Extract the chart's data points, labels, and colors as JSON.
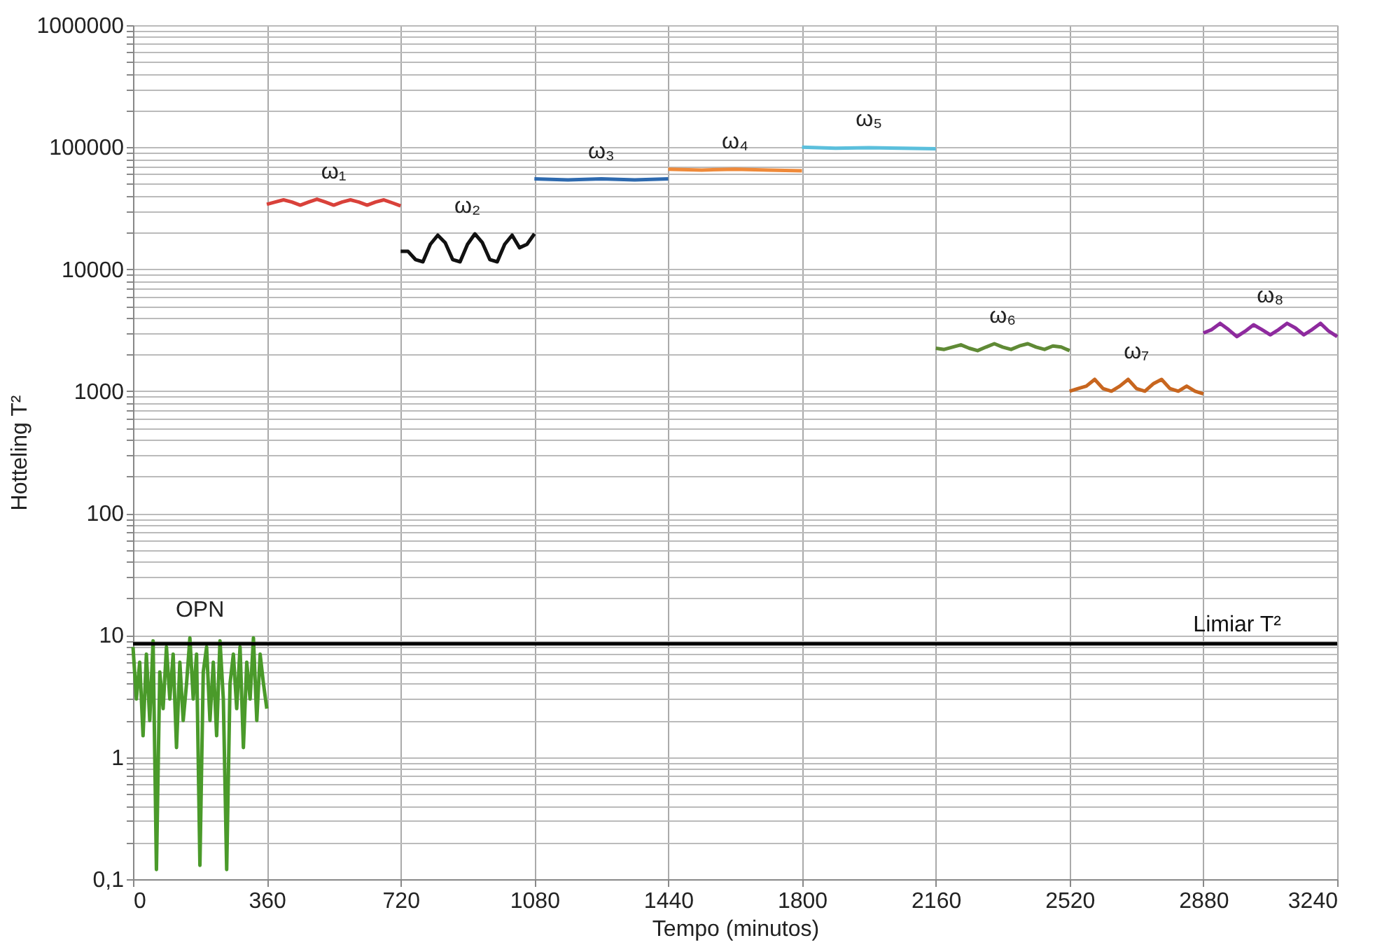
{
  "chart_data": {
    "type": "line",
    "xlabel": "Tempo (minutos)",
    "ylabel": "Hotteling T²",
    "log": "y",
    "grid": true,
    "marker": "none",
    "line_style": "solid",
    "xlim": [
      0,
      3240
    ],
    "xticks": [
      0,
      360,
      720,
      1080,
      1440,
      1800,
      2160,
      2520,
      2880,
      3240
    ],
    "ylim": [
      0.1,
      1000000
    ],
    "yticks": [
      {
        "value": 0.1,
        "label": "0,1"
      },
      {
        "value": 0.2,
        "label": null
      },
      {
        "value": 0.3,
        "label": null
      },
      {
        "value": 0.4,
        "label": null
      },
      {
        "value": 0.5,
        "label": null
      },
      {
        "value": 0.6,
        "label": null
      },
      {
        "value": 0.7,
        "label": null
      },
      {
        "value": 0.8,
        "label": null
      },
      {
        "value": 0.9,
        "label": null
      },
      1,
      {
        "value": 2,
        "label": null
      },
      {
        "value": 3,
        "label": null
      },
      {
        "value": 4,
        "label": null
      },
      {
        "value": 5,
        "label": null
      },
      {
        "value": 6,
        "label": null
      },
      {
        "value": 7,
        "label": null
      },
      {
        "value": 8,
        "label": null
      },
      {
        "value": 9,
        "label": null
      },
      10,
      {
        "value": 20,
        "label": null
      },
      {
        "value": 30,
        "label": null
      },
      {
        "value": 40,
        "label": null
      },
      {
        "value": 50,
        "label": null
      },
      {
        "value": 60,
        "label": null
      },
      {
        "value": 70,
        "label": null
      },
      {
        "value": 80,
        "label": null
      },
      {
        "value": 90,
        "label": null
      },
      100,
      {
        "value": 200,
        "label": null
      },
      {
        "value": 300,
        "label": null
      },
      {
        "value": 400,
        "label": null
      },
      {
        "value": 500,
        "label": null
      },
      {
        "value": 600,
        "label": null
      },
      {
        "value": 700,
        "label": null
      },
      {
        "value": 800,
        "label": null
      },
      {
        "value": 900,
        "label": null
      },
      1000,
      {
        "value": 2000,
        "label": null
      },
      {
        "value": 3000,
        "label": null
      },
      {
        "value": 4000,
        "label": null
      },
      {
        "value": 5000,
        "label": null
      },
      {
        "value": 6000,
        "label": null
      },
      {
        "value": 7000,
        "label": null
      },
      {
        "value": 8000,
        "label": null
      },
      {
        "value": 9000,
        "label": null
      },
      10000,
      {
        "value": 20000,
        "label": null
      },
      {
        "value": 30000,
        "label": null
      },
      {
        "value": 40000,
        "label": null
      },
      {
        "value": 50000,
        "label": null
      },
      {
        "value": 60000,
        "label": null
      },
      {
        "value": 70000,
        "label": null
      },
      {
        "value": 80000,
        "label": null
      },
      {
        "value": 90000,
        "label": null
      },
      100000,
      {
        "value": 200000,
        "label": null
      },
      {
        "value": 300000,
        "label": null
      },
      {
        "value": 400000,
        "label": null
      },
      {
        "value": 500000,
        "label": null
      },
      {
        "value": 600000,
        "label": null
      },
      {
        "value": 700000,
        "label": null
      },
      {
        "value": 800000,
        "label": null
      },
      {
        "value": 900000,
        "label": null
      },
      1000000
    ],
    "ref_lines": [
      {
        "axis": "y",
        "value": 8.5,
        "label": "Limiar T²",
        "color": "#000000"
      }
    ],
    "series": [
      {
        "name": "OPN",
        "color": "#4a9a2a",
        "x": [
          0,
          9,
          18,
          27,
          36,
          45,
          54,
          63,
          72,
          81,
          90,
          99,
          108,
          117,
          126,
          135,
          144,
          153,
          162,
          171,
          180,
          189,
          198,
          207,
          216,
          225,
          234,
          243,
          252,
          261,
          270,
          279,
          288,
          297,
          306,
          315,
          324,
          333,
          342,
          351,
          360
        ],
        "values": [
          8,
          3,
          6,
          1.5,
          7,
          2,
          9,
          0.12,
          5,
          2.5,
          8,
          3,
          7,
          1.2,
          6,
          2,
          4,
          9.5,
          3,
          7,
          0.13,
          5,
          8,
          2,
          6,
          1.5,
          9,
          3,
          0.12,
          4,
          7,
          2.5,
          8,
          1.2,
          6,
          3,
          9.5,
          2,
          7,
          4,
          2.5
        ]
      },
      {
        "name": "ω₁",
        "color": "#d9413a",
        "x": [
          360,
          382.5,
          405,
          427.5,
          450,
          472.5,
          495,
          517.5,
          540,
          562.5,
          585,
          607.5,
          630,
          652.5,
          675,
          697.5,
          720
        ],
        "values": [
          34000,
          35500,
          37000,
          35500,
          33500,
          35500,
          37500,
          35500,
          33500,
          35500,
          37000,
          35500,
          33500,
          35500,
          37000,
          35000,
          33000
        ]
      },
      {
        "name": "ω₂",
        "color": "#111111",
        "x": [
          720,
          740,
          760,
          780,
          800,
          820,
          840,
          860,
          880,
          900,
          920,
          940,
          960,
          980,
          1000,
          1020,
          1040,
          1060,
          1080
        ],
        "values": [
          14000,
          14000,
          12000,
          11500,
          16000,
          19000,
          16500,
          12000,
          11500,
          16000,
          19500,
          16500,
          12000,
          11500,
          16000,
          19000,
          15000,
          16000,
          19500
        ]
      },
      {
        "name": "ω₃",
        "color": "#2e6aaf",
        "x": [
          1080,
          1170,
          1260,
          1350,
          1440
        ],
        "values": [
          55000,
          54000,
          55000,
          54000,
          55000
        ]
      },
      {
        "name": "ω₄",
        "color": "#ef8a3a",
        "x": [
          1440,
          1530,
          1620,
          1710,
          1800
        ],
        "values": [
          66000,
          65000,
          66000,
          65000,
          64000
        ]
      },
      {
        "name": "ω₅",
        "color": "#5bbfdc",
        "x": [
          1800,
          1890,
          1980,
          2070,
          2160
        ],
        "values": [
          100000,
          98000,
          99000,
          98000,
          97000
        ]
      },
      {
        "name": "ω₆",
        "color": "#5f8a35",
        "x": [
          2160,
          2182.5,
          2205,
          2227.5,
          2250,
          2272.5,
          2295,
          2317.5,
          2340,
          2362.5,
          2385,
          2407.5,
          2430,
          2452.5,
          2475,
          2497.5,
          2520
        ],
        "values": [
          2250,
          2200,
          2300,
          2400,
          2250,
          2150,
          2300,
          2450,
          2300,
          2200,
          2350,
          2450,
          2300,
          2200,
          2350,
          2300,
          2150
        ]
      },
      {
        "name": "ω₇",
        "color": "#c8661f",
        "x": [
          2520,
          2542.5,
          2565,
          2587.5,
          2610,
          2632.5,
          2655,
          2677.5,
          2700,
          2722.5,
          2745,
          2767.5,
          2790,
          2812.5,
          2835,
          2857.5,
          2880
        ],
        "values": [
          1000,
          1050,
          1100,
          1250,
          1050,
          1000,
          1100,
          1250,
          1050,
          1000,
          1150,
          1250,
          1050,
          1000,
          1100,
          1000,
          950
        ]
      },
      {
        "name": "ω₈",
        "color": "#8e2a9e",
        "x": [
          2880,
          2902.5,
          2925,
          2947.5,
          2970,
          2992.5,
          3015,
          3037.5,
          3060,
          3082.5,
          3105,
          3127.5,
          3150,
          3172.5,
          3195,
          3217.5,
          3240
        ],
        "values": [
          3000,
          3200,
          3600,
          3200,
          2800,
          3100,
          3500,
          3200,
          2900,
          3200,
          3600,
          3300,
          2900,
          3200,
          3600,
          3100,
          2800
        ]
      }
    ]
  }
}
